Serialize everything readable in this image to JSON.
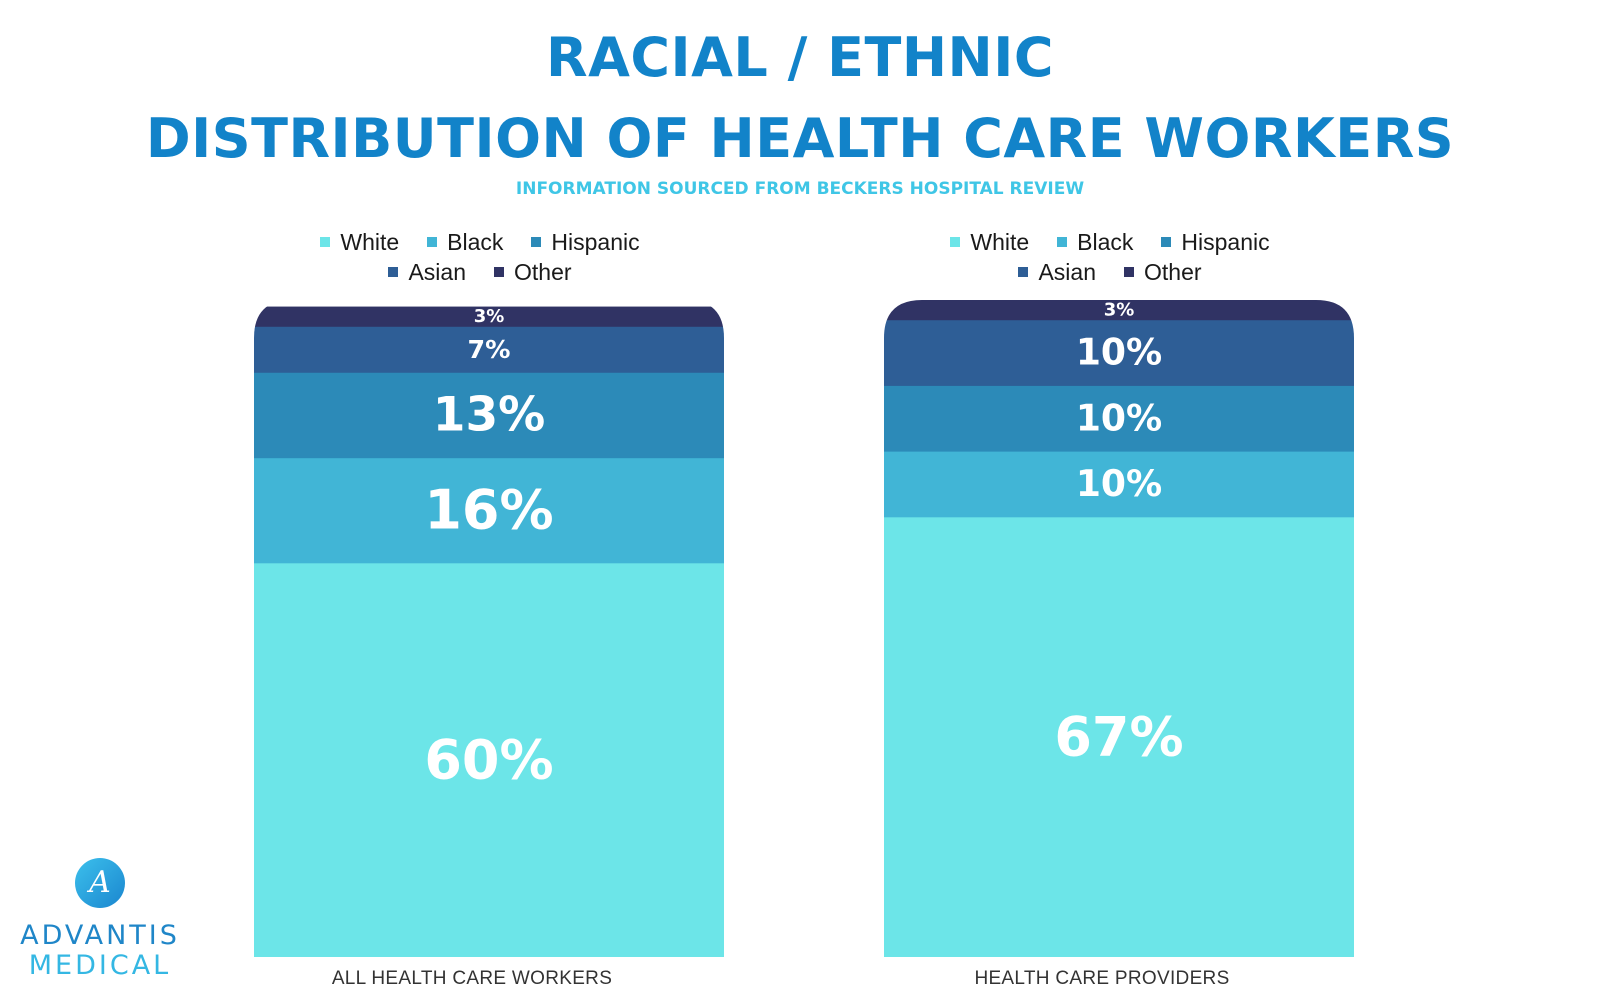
{
  "title_line1": "RACIAL / ETHNIC",
  "title_line2": "DISTRIBUTION OF HEALTH CARE WORKERS",
  "subtitle": "INFORMATION SOURCED FROM BECKERS HOSPITAL REVIEW",
  "logo": {
    "line1": "ADVANTIS",
    "line2": "MEDICAL",
    "badge_letter": "A"
  },
  "colors": {
    "White": "#6ce5e8",
    "Black": "#41b5d6",
    "Hispanic": "#2c8ab8",
    "Asian": "#2e5e96",
    "Other": "#303364",
    "title": "#1283c9",
    "subtitle": "#3fc6e6"
  },
  "chart_data": [
    {
      "type": "bar",
      "stacked": true,
      "categories": [
        "ALL HEALTH CARE WORKERS"
      ],
      "series": [
        {
          "name": "White",
          "values": [
            60
          ],
          "label": "60%"
        },
        {
          "name": "Black",
          "values": [
            16
          ],
          "label": "16%"
        },
        {
          "name": "Hispanic",
          "values": [
            13
          ],
          "label": "13%"
        },
        {
          "name": "Asian",
          "values": [
            7
          ],
          "label": "7%"
        },
        {
          "name": "Other",
          "values": [
            3
          ],
          "label": "3%"
        }
      ],
      "legend_position": "top",
      "ylim": [
        0,
        100
      ],
      "grid": false
    },
    {
      "type": "bar",
      "stacked": true,
      "categories": [
        "HEALTH CARE PROVIDERS"
      ],
      "series": [
        {
          "name": "White",
          "values": [
            67
          ],
          "label": "67%"
        },
        {
          "name": "Black",
          "values": [
            10
          ],
          "label": "10%"
        },
        {
          "name": "Hispanic",
          "values": [
            10
          ],
          "label": "10%"
        },
        {
          "name": "Asian",
          "values": [
            10
          ],
          "label": "10%"
        },
        {
          "name": "Other",
          "values": [
            3
          ],
          "label": "3%"
        }
      ],
      "legend_position": "top",
      "ylim": [
        0,
        100
      ],
      "grid": false
    }
  ]
}
